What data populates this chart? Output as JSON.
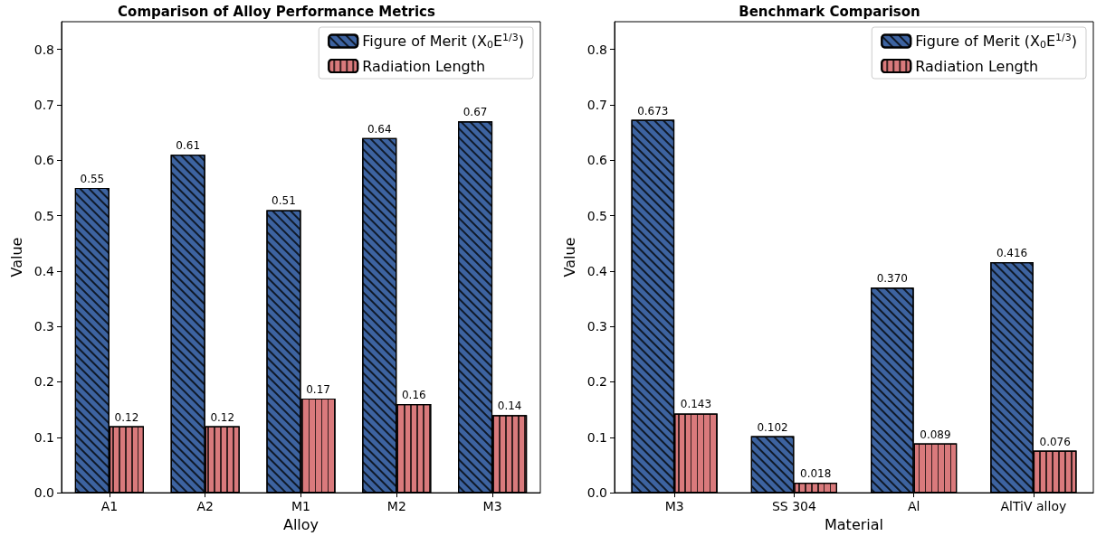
{
  "chart_data": [
    {
      "type": "bar",
      "title": "Comparison of Alloy Performance Metrics",
      "xlabel": "Alloy",
      "ylabel": "Value",
      "categories": [
        "A1",
        "A2",
        "M1",
        "M2",
        "M3"
      ],
      "series": [
        {
          "name": "Figure of Merit (X$_{0}$E$^{1/3}$)",
          "color": "#3d63a0",
          "values": [
            0.55,
            0.61,
            0.51,
            0.64,
            0.67
          ],
          "value_labels": [
            "0.55",
            "0.61",
            "0.51",
            "0.64",
            "0.67"
          ]
        },
        {
          "name": "Radiation Length",
          "color": "#d97a7c",
          "values": [
            0.12,
            0.12,
            0.17,
            0.16,
            0.14
          ],
          "value_labels": [
            "0.12",
            "0.12",
            "0.17",
            "0.16",
            "0.14"
          ]
        }
      ],
      "ylim": [
        0,
        0.85
      ],
      "yticks": [
        {
          "value": 0,
          "label": "0.0"
        },
        0.1,
        0.2,
        0.3,
        0.4,
        0.5,
        0.6,
        0.7,
        0.8
      ],
      "legend": "top right",
      "grid": false
    },
    {
      "type": "bar",
      "title": "Benchmark Comparison",
      "xlabel": "Material",
      "ylabel": "Value",
      "categories": [
        "M3",
        "SS 304",
        "Al",
        "AlTiV alloy"
      ],
      "series": [
        {
          "name": "Figure of Merit (X$_{0}$E$^{1/3}$)",
          "color": "#3d63a0",
          "values": [
            0.673,
            0.102,
            0.37,
            0.416
          ],
          "value_labels": [
            "0.673",
            "0.102",
            "0.370",
            "0.416"
          ]
        },
        {
          "name": "Radiation Length",
          "color": "#d97a7c",
          "values": [
            0.143,
            0.018,
            0.089,
            0.076
          ],
          "value_labels": [
            "0.143",
            "0.018",
            "0.089",
            "0.076"
          ]
        }
      ],
      "ylim": [
        0,
        0.85
      ],
      "yticks": [
        {
          "value": 0,
          "label": "0.0"
        },
        0.1,
        0.2,
        0.3,
        0.4,
        0.5,
        0.6,
        0.7,
        0.8
      ],
      "legend": "top right",
      "grid": false
    }
  ]
}
